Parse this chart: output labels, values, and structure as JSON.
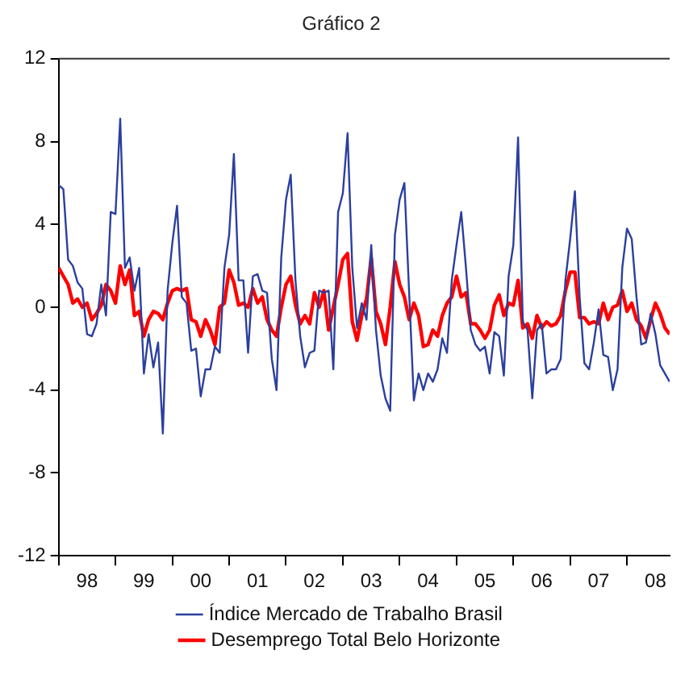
{
  "chart_data": {
    "type": "line",
    "title": "Gráfico 2",
    "x": [
      "1998-01",
      "1998-02",
      "1998-03",
      "1998-04",
      "1998-05",
      "1998-06",
      "1998-07",
      "1998-08",
      "1998-09",
      "1998-10",
      "1998-11",
      "1998-12",
      "1999-01",
      "1999-02",
      "1999-03",
      "1999-04",
      "1999-05",
      "1999-06",
      "1999-07",
      "1999-08",
      "1999-09",
      "1999-10",
      "1999-11",
      "1999-12",
      "2000-01",
      "2000-02",
      "2000-03",
      "2000-04",
      "2000-05",
      "2000-06",
      "2000-07",
      "2000-08",
      "2000-09",
      "2000-10",
      "2000-11",
      "2000-12",
      "2001-01",
      "2001-02",
      "2001-03",
      "2001-04",
      "2001-05",
      "2001-06",
      "2001-07",
      "2001-08",
      "2001-09",
      "2001-10",
      "2001-11",
      "2001-12",
      "2002-01",
      "2002-02",
      "2002-03",
      "2002-04",
      "2002-05",
      "2002-06",
      "2002-07",
      "2002-08",
      "2002-09",
      "2002-10",
      "2002-11",
      "2002-12",
      "2003-01",
      "2003-02",
      "2003-03",
      "2003-04",
      "2003-05",
      "2003-06",
      "2003-07",
      "2003-08",
      "2003-09",
      "2003-10",
      "2003-11",
      "2003-12",
      "2004-01",
      "2004-02",
      "2004-03",
      "2004-04",
      "2004-05",
      "2004-06",
      "2004-07",
      "2004-08",
      "2004-09",
      "2004-10",
      "2004-11",
      "2004-12",
      "2005-01",
      "2005-02",
      "2005-03",
      "2005-04",
      "2005-05",
      "2005-06",
      "2005-07",
      "2005-08",
      "2005-09",
      "2005-10",
      "2005-11",
      "2005-12",
      "2006-01",
      "2006-02",
      "2006-03",
      "2006-04",
      "2006-05",
      "2006-06",
      "2006-07",
      "2006-08",
      "2006-09",
      "2006-10",
      "2006-11",
      "2006-12",
      "2007-01",
      "2007-02",
      "2007-03",
      "2007-04",
      "2007-05",
      "2007-06",
      "2007-07",
      "2007-08",
      "2007-09",
      "2007-10",
      "2007-11",
      "2007-12",
      "2008-01",
      "2008-02",
      "2008-03",
      "2008-04",
      "2008-05",
      "2008-06",
      "2008-07",
      "2008-08",
      "2008-09",
      "2008-10"
    ],
    "series": [
      {
        "name": "Índice Mercado de Trabalho Brasil",
        "color": "#2b3f9e",
        "values": [
          5.9,
          5.7,
          2.3,
          2.0,
          1.2,
          0.9,
          -1.3,
          -1.4,
          -0.8,
          1.1,
          -0.4,
          4.6,
          4.5,
          9.1,
          1.9,
          2.4,
          0.8,
          1.9,
          -3.2,
          -1.3,
          -2.9,
          -1.7,
          -6.1,
          0.8,
          3.1,
          4.9,
          0.5,
          0.2,
          -2.1,
          -2.0,
          -4.3,
          -3.0,
          -3.0,
          -1.9,
          -2.2,
          1.9,
          3.5,
          7.4,
          1.3,
          1.3,
          -2.2,
          1.5,
          1.6,
          0.8,
          0.7,
          -2.5,
          -4.0,
          2.4,
          5.2,
          6.4,
          1.3,
          -1.4,
          -2.9,
          -2.2,
          -2.1,
          0.8,
          0.7,
          0.8,
          -3.0,
          4.6,
          5.5,
          8.4,
          1.9,
          -1.0,
          0.2,
          -0.6,
          3.0,
          -1.1,
          -3.3,
          -4.4,
          -5.0,
          3.5,
          5.2,
          6.0,
          0.7,
          -4.5,
          -3.2,
          -4.0,
          -3.2,
          -3.6,
          -3.0,
          -1.5,
          -2.2,
          1.3,
          3.0,
          4.6,
          1.9,
          -1.1,
          -1.8,
          -2.1,
          -1.9,
          -3.2,
          -1.2,
          -1.4,
          -3.3,
          1.5,
          3.0,
          8.2,
          -0.7,
          -1.1,
          -4.4,
          -1.1,
          -0.8,
          -3.2,
          -3.0,
          -3.0,
          -2.5,
          1.3,
          3.3,
          5.6,
          0.5,
          -2.7,
          -3.0,
          -1.7,
          -0.1,
          -2.3,
          -2.4,
          -4.0,
          -3.0,
          1.9,
          3.8,
          3.3,
          0.5,
          -1.8,
          -1.7,
          -0.3,
          -1.3,
          -2.8,
          -3.2,
          -3.6
        ]
      },
      {
        "name": "Desemprego Total Belo Horizonte",
        "color": "#ff0000",
        "values": [
          1.9,
          1.5,
          1.1,
          0.2,
          0.4,
          0.0,
          0.2,
          -0.6,
          -0.3,
          0.1,
          1.1,
          0.8,
          0.2,
          2.0,
          1.1,
          1.8,
          -0.4,
          -0.2,
          -1.4,
          -0.6,
          -0.2,
          -0.3,
          -0.6,
          0.2,
          0.8,
          0.9,
          0.8,
          0.9,
          -0.6,
          -0.7,
          -1.4,
          -0.6,
          -1.1,
          -1.8,
          0.0,
          0.2,
          1.8,
          1.2,
          0.1,
          0.2,
          0.0,
          0.9,
          0.2,
          0.5,
          -0.6,
          -1.1,
          -1.4,
          0.0,
          1.1,
          1.5,
          0.1,
          -0.8,
          -0.4,
          -0.8,
          0.7,
          0.0,
          0.8,
          -1.1,
          0.0,
          1.1,
          2.3,
          2.6,
          -0.7,
          -1.6,
          -0.4,
          0.4,
          2.4,
          -0.2,
          -0.8,
          -1.8,
          0.0,
          2.2,
          1.1,
          0.5,
          -0.6,
          0.2,
          -0.4,
          -1.9,
          -1.8,
          -1.1,
          -1.4,
          -0.4,
          0.2,
          0.5,
          1.5,
          0.5,
          0.7,
          -0.8,
          -0.8,
          -1.1,
          -1.5,
          -1.1,
          0.1,
          0.6,
          -0.4,
          0.2,
          0.1,
          1.3,
          -1.0,
          -0.8,
          -1.5,
          -0.4,
          -1.0,
          -0.7,
          -0.9,
          -0.8,
          -0.4,
          0.8,
          1.7,
          1.7,
          -0.5,
          -0.5,
          -0.8,
          -0.7,
          -0.8,
          0.2,
          -0.6,
          0.0,
          0.1,
          0.8,
          -0.2,
          0.2,
          -0.6,
          -0.9,
          -1.5,
          -0.6,
          0.2,
          -0.3,
          -1.0,
          -1.3
        ]
      }
    ],
    "xlim": [
      "1998-01",
      "2008-10"
    ],
    "xticks": [
      {
        "value": "1998-01",
        "label": null
      },
      {
        "value": "1998-07",
        "label": "98"
      },
      {
        "value": "1999-01",
        "label": null
      },
      {
        "value": "1999-07",
        "label": "99"
      },
      {
        "value": "2000-01",
        "label": null
      },
      {
        "value": "2000-07",
        "label": "00"
      },
      {
        "value": "2001-01",
        "label": null
      },
      {
        "value": "2001-07",
        "label": "01"
      },
      {
        "value": "2002-01",
        "label": null
      },
      {
        "value": "2002-07",
        "label": "02"
      },
      {
        "value": "2003-01",
        "label": null
      },
      {
        "value": "2003-07",
        "label": "03"
      },
      {
        "value": "2004-01",
        "label": null
      },
      {
        "value": "2004-07",
        "label": "04"
      },
      {
        "value": "2005-01",
        "label": null
      },
      {
        "value": "2005-07",
        "label": "05"
      },
      {
        "value": "2006-01",
        "label": null
      },
      {
        "value": "2006-07",
        "label": "06"
      },
      {
        "value": "2007-01",
        "label": null
      },
      {
        "value": "2007-07",
        "label": "07"
      },
      {
        "value": "2008-01",
        "label": null
      },
      {
        "value": "2008-07",
        "label": "08"
      }
    ],
    "ylim": [
      -12,
      12
    ],
    "yticks": [
      -12,
      -8,
      -4,
      0,
      4,
      8,
      12
    ],
    "grid": false,
    "legend": "bottom",
    "marker": "none",
    "line_style": "solid"
  }
}
